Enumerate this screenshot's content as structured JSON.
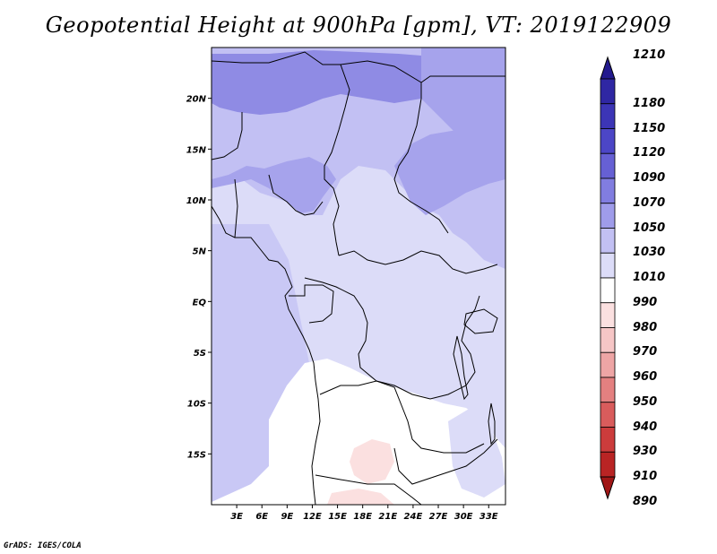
{
  "title": "Geopotential Height at 900hPa [gpm], VT: 2019122909",
  "credit": "GrADS: IGES/COLA",
  "map": {
    "lat_labels": [
      "20N",
      "15N",
      "10N",
      "5N",
      "EQ",
      "5S",
      "10S",
      "15S"
    ],
    "lon_labels": [
      "3E",
      "6E",
      "9E",
      "12E",
      "15E",
      "18E",
      "21E",
      "24E",
      "27E",
      "30E",
      "33E"
    ],
    "lat_values": [
      20,
      15,
      10,
      5,
      0,
      -5,
      -10,
      -15
    ],
    "lon_values": [
      3,
      6,
      9,
      12,
      15,
      18,
      21,
      24,
      27,
      30,
      33
    ],
    "lon_range": [
      0,
      35
    ],
    "lat_range": [
      -20,
      25
    ]
  },
  "colorbar": {
    "levels": [
      "1210",
      "1180",
      "1150",
      "1120",
      "1090",
      "1070",
      "1050",
      "1030",
      "1010",
      "990",
      "980",
      "970",
      "960",
      "950",
      "940",
      "930",
      "910",
      "890"
    ],
    "colors": [
      "#231a8e",
      "#2f27a3",
      "#3c35b6",
      "#4c46c6",
      "#6660d4",
      "#817de0",
      "#9f9cea",
      "#c2c0f3",
      "#dcdcf8",
      "#ffffff",
      "#fbe0e0",
      "#f6c6c6",
      "#eea5a5",
      "#e48080",
      "#d95c5c",
      "#cc3c3c",
      "#b92424",
      "#a01616"
    ]
  }
}
